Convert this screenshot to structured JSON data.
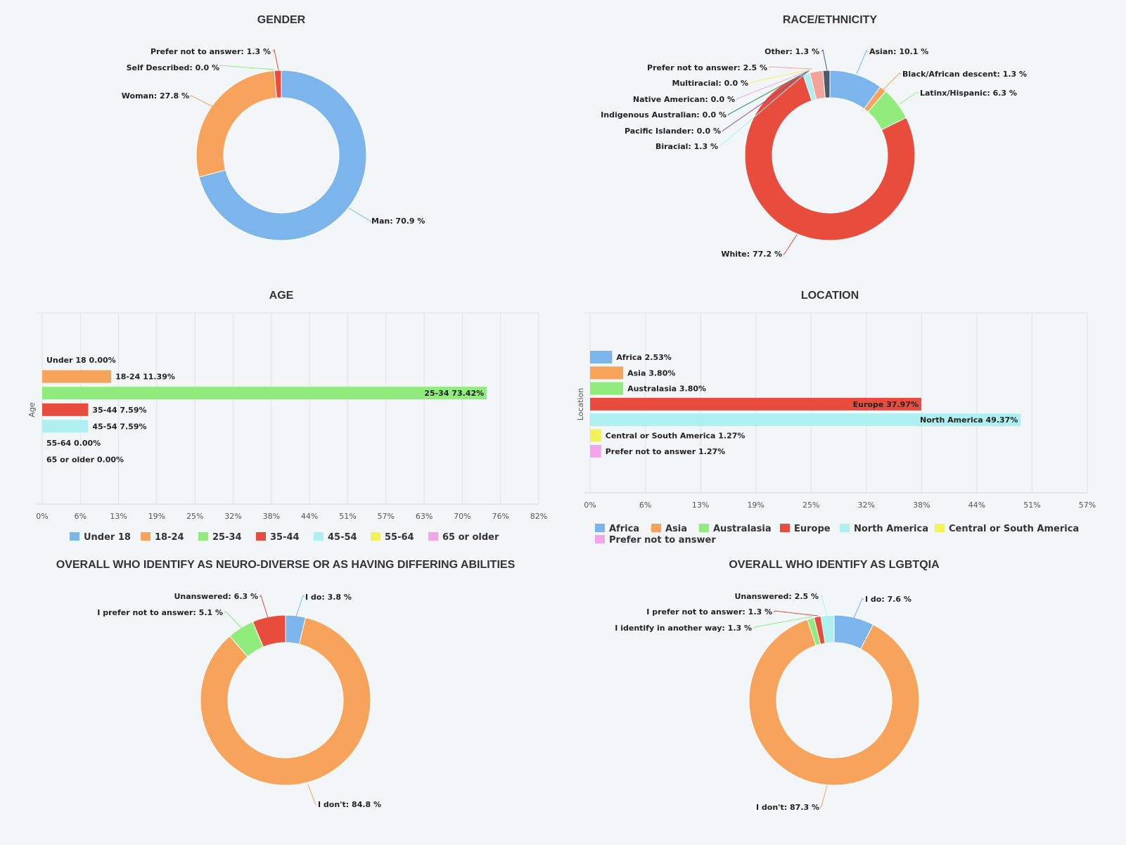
{
  "chart_data": [
    {
      "id": "gender",
      "type": "pie",
      "title": "GENDER",
      "slices": [
        {
          "label": "Man: 70.9 %",
          "value": 70.9,
          "color": "#7cb5ec"
        },
        {
          "label": "Woman: 27.8 %",
          "value": 27.8,
          "color": "#f7a35c"
        },
        {
          "label": "Self Described: 0.0 %",
          "value": 0.0,
          "color": "#90ed7d"
        },
        {
          "label": "Prefer not to answer: 1.3 %",
          "value": 1.3,
          "color": "#e74c3c"
        }
      ]
    },
    {
      "id": "race",
      "type": "pie",
      "title": "RACE/ETHNICITY",
      "slices": [
        {
          "label": "Asian: 10.1 %",
          "value": 10.1,
          "color": "#7cb5ec"
        },
        {
          "label": "Black/African descent: 1.3 %",
          "value": 1.3,
          "color": "#f7a35c"
        },
        {
          "label": "Latinx/Hispanic: 6.3 %",
          "value": 6.3,
          "color": "#90ed7d"
        },
        {
          "label": "White: 77.2 %",
          "value": 77.2,
          "color": "#e74c3c"
        },
        {
          "label": "Biracial: 1.3 %",
          "value": 1.3,
          "color": "#aef0f0"
        },
        {
          "label": "Pacific Islander: 0.0 %",
          "value": 0.0,
          "color": "#7b4db0"
        },
        {
          "label": "Indigenous Australian: 0.0 %",
          "value": 0.0,
          "color": "#2e8b57"
        },
        {
          "label": "Native American: 0.0 %",
          "value": 0.0,
          "color": "#f0a6e8"
        },
        {
          "label": "Multiracial: 0.0 %",
          "value": 0.0,
          "color": "#f2f25a"
        },
        {
          "label": "Prefer not to answer: 2.5 %",
          "value": 2.5,
          "color": "#f4a39a"
        },
        {
          "label": "Other: 1.3 %",
          "value": 1.3,
          "color": "#4a5a68"
        }
      ]
    },
    {
      "id": "age",
      "type": "bar",
      "title": "AGE",
      "ylabel": "Age",
      "xlim": [
        0,
        82
      ],
      "ticks": [
        "0%",
        "6%",
        "13%",
        "19%",
        "25%",
        "32%",
        "38%",
        "44%",
        "51%",
        "57%",
        "63%",
        "70%",
        "76%",
        "82%"
      ],
      "bars": [
        {
          "label": "Under 18 0.00%",
          "value": 0.0,
          "color": "#7cb5ec"
        },
        {
          "label": "18-24 11.39%",
          "value": 11.39,
          "color": "#f7a35c"
        },
        {
          "label": "25-34 73.42%",
          "value": 73.42,
          "color": "#90ed7d"
        },
        {
          "label": "35-44 7.59%",
          "value": 7.59,
          "color": "#e74c3c"
        },
        {
          "label": "45-54 7.59%",
          "value": 7.59,
          "color": "#aef0f0"
        },
        {
          "label": "55-64 0.00%",
          "value": 0.0,
          "color": "#f2f25a"
        },
        {
          "label": "65 or older 0.00%",
          "value": 0.0,
          "color": "#f0a6e8"
        }
      ],
      "legend": [
        {
          "label": "Under 18",
          "color": "#7cb5ec"
        },
        {
          "label": "18-24",
          "color": "#f7a35c"
        },
        {
          "label": "25-34",
          "color": "#90ed7d"
        },
        {
          "label": "35-44",
          "color": "#e74c3c"
        },
        {
          "label": "45-54",
          "color": "#aef0f0"
        },
        {
          "label": "55-64",
          "color": "#f2f25a"
        },
        {
          "label": "65 or older",
          "color": "#f0a6e8"
        }
      ]
    },
    {
      "id": "location",
      "type": "bar",
      "title": "LOCATION",
      "ylabel": "Location",
      "xlim": [
        0,
        57
      ],
      "ticks": [
        "0%",
        "6%",
        "13%",
        "19%",
        "25%",
        "32%",
        "38%",
        "44%",
        "51%",
        "57%"
      ],
      "bars": [
        {
          "label": "Africa 2.53%",
          "value": 2.53,
          "color": "#7cb5ec"
        },
        {
          "label": "Asia 3.80%",
          "value": 3.8,
          "color": "#f7a35c"
        },
        {
          "label": "Australasia 3.80%",
          "value": 3.8,
          "color": "#90ed7d"
        },
        {
          "label": "Europe 37.97%",
          "value": 37.97,
          "color": "#e74c3c"
        },
        {
          "label": "North America 49.37%",
          "value": 49.37,
          "color": "#aef0f0"
        },
        {
          "label": "Central or South America 1.27%",
          "value": 1.27,
          "color": "#f2f25a"
        },
        {
          "label": "Prefer not to answer 1.27%",
          "value": 1.27,
          "color": "#f0a6e8"
        }
      ],
      "legend": [
        {
          "label": "Africa",
          "color": "#7cb5ec"
        },
        {
          "label": "Asia",
          "color": "#f7a35c"
        },
        {
          "label": "Australasia",
          "color": "#90ed7d"
        },
        {
          "label": "Europe",
          "color": "#e74c3c"
        },
        {
          "label": "North America",
          "color": "#aef0f0"
        },
        {
          "label": "Central or South America",
          "color": "#f2f25a"
        },
        {
          "label": "Prefer not to answer",
          "color": "#f0a6e8"
        }
      ]
    },
    {
      "id": "neuro",
      "type": "pie",
      "title": "OVERALL WHO IDENTIFY AS NEURO-DIVERSE OR AS HAVING DIFFERING ABILITIES",
      "slices": [
        {
          "label": "I do: 3.8 %",
          "value": 3.8,
          "color": "#7cb5ec"
        },
        {
          "label": "I don't: 84.8 %",
          "value": 84.8,
          "color": "#f7a35c"
        },
        {
          "label": "I prefer not to answer: 5.1 %",
          "value": 5.1,
          "color": "#90ed7d"
        },
        {
          "label": "Unanswered: 6.3 %",
          "value": 6.3,
          "color": "#e74c3c"
        }
      ]
    },
    {
      "id": "lgbtqia",
      "type": "pie",
      "title": "OVERALL WHO IDENTIFY AS LGBTQIA",
      "slices": [
        {
          "label": "I do: 7.6 %",
          "value": 7.6,
          "color": "#7cb5ec"
        },
        {
          "label": "I don't: 87.3 %",
          "value": 87.3,
          "color": "#f7a35c"
        },
        {
          "label": "I identify in another way: 1.3 %",
          "value": 1.3,
          "color": "#90ed7d"
        },
        {
          "label": "I prefer not to answer: 1.3 %",
          "value": 1.3,
          "color": "#e74c3c"
        },
        {
          "label": "Unanswered: 2.5 %",
          "value": 2.5,
          "color": "#aef0f0"
        }
      ]
    }
  ]
}
